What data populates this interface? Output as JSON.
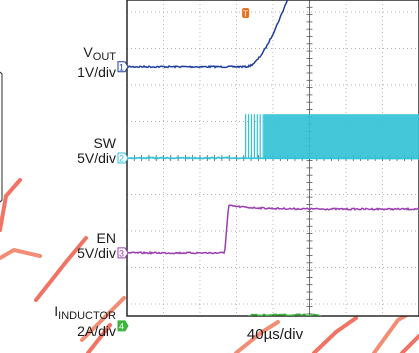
{
  "chart_data": {
    "type": "line",
    "title": "",
    "timebase": "40µs/div",
    "x_divisions": 10,
    "y_divisions": 8,
    "x_range_us": [
      0,
      400
    ],
    "grid": true,
    "trigger_marker": "T",
    "series": [
      {
        "name_main": "V",
        "name_sub": "OUT",
        "scale": "1V/div",
        "channel": "1",
        "color": "#1f3f9e",
        "waveform": {
          "kind": "ramp",
          "level_div": 2.5,
          "start_us": 130,
          "end_us": 230,
          "delta_div": 4.2
        }
      },
      {
        "name_main": "SW",
        "name_sub": "",
        "scale": "5V/div",
        "channel": "2",
        "color": "#33c2d6",
        "waveform": {
          "kind": "switching",
          "level_div": 0.0,
          "start_us": 130,
          "high_div": 1.2
        }
      },
      {
        "name_main": "EN",
        "name_sub": "",
        "scale": "5V/div",
        "channel": "3",
        "color": "#9a3fb0",
        "waveform": {
          "kind": "step",
          "level_div": -2.6,
          "step_us": 107,
          "delta_div": 1.2
        }
      },
      {
        "name_main": "I",
        "name_sub": "INDUCTOR",
        "scale": "2A/div",
        "channel": "4",
        "color": "#3bb53b",
        "waveform": {
          "kind": "inrush",
          "level_div": -4.6,
          "start_us": 130,
          "end_us": 230,
          "delta_div": 0.3
        }
      }
    ]
  }
}
